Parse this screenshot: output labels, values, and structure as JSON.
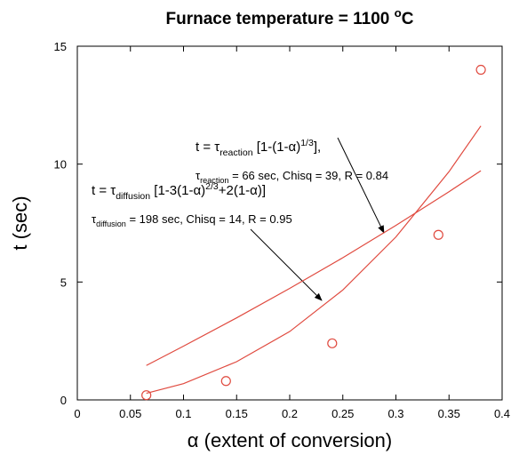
{
  "chart_data": {
    "type": "scatter",
    "title": [
      {
        "text": "Furnace temperature = 1100 "
      },
      {
        "text": "o",
        "sup": true
      },
      {
        "text": "C"
      }
    ],
    "x_label": "α (extent of conversion)",
    "y_label": "t (sec)",
    "xlim": [
      0,
      0.4
    ],
    "ylim": [
      0,
      15
    ],
    "xticks": [
      0,
      0.05,
      0.1,
      0.15,
      0.2,
      0.25,
      0.3,
      0.35,
      0.4
    ],
    "yticks": [
      0,
      5,
      10,
      15
    ],
    "series": [
      {
        "kind": "points",
        "color": "#e04a3f",
        "x": [
          0.065,
          0.14,
          0.24,
          0.34,
          0.38
        ],
        "values": [
          0.2,
          0.8,
          2.4,
          7.0,
          14.0
        ]
      },
      {
        "kind": "line",
        "color": "#e04a3f",
        "x": [
          0.065,
          0.1,
          0.15,
          0.2,
          0.25,
          0.3,
          0.35,
          0.38
        ],
        "values": [
          1.46,
          2.28,
          3.48,
          4.73,
          6.03,
          7.4,
          8.83,
          9.72
        ]
      },
      {
        "kind": "line",
        "color": "#e04a3f",
        "x": [
          0.065,
          0.1,
          0.15,
          0.2,
          0.25,
          0.3,
          0.35,
          0.38
        ],
        "values": [
          0.28,
          0.69,
          1.62,
          2.9,
          4.66,
          6.91,
          9.68,
          11.62
        ]
      }
    ],
    "annotations": [
      {
        "lines": [
          [
            {
              "text": "t = τ"
            },
            {
              "text": "reaction",
              "sub": true
            },
            {
              "text": " [1-(1-α)"
            },
            {
              "text": "1/3",
              "sup": true
            },
            {
              "text": "],"
            }
          ],
          [
            {
              "text": "τ"
            },
            {
              "text": "reaction",
              "sub": true
            },
            {
              "text": " = 66 sec, Chisq = 39, R = 0.84"
            }
          ]
        ]
      },
      {
        "lines": [
          [
            {
              "text": "t = τ"
            },
            {
              "text": "diffusion",
              "sub": true
            },
            {
              "text": " [1-3(1-α)"
            },
            {
              "text": "2/3",
              "sup": true
            },
            {
              "text": "+2(1-α)]"
            }
          ],
          [
            {
              "text": "τ"
            },
            {
              "text": "diffusion",
              "sub": true
            },
            {
              "text": " = 198 sec, Chisq = 14, R = 0.95"
            }
          ]
        ]
      }
    ]
  }
}
